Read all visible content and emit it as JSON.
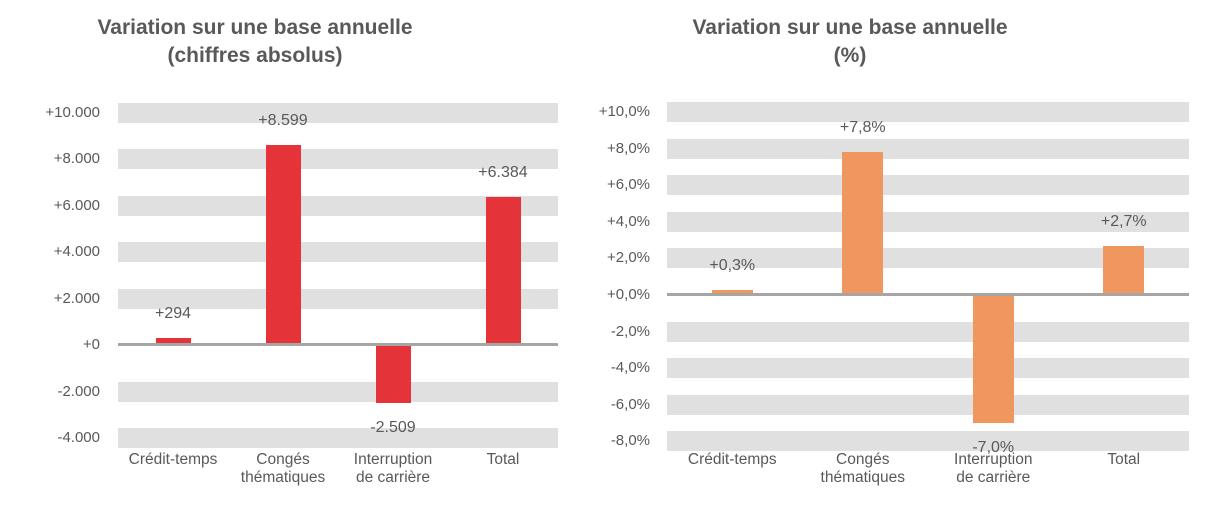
{
  "style": {
    "background": "#FFFFFF",
    "band_color": "#E0E0E0",
    "zero_line_color": "#A6A6A6",
    "text_color": "#595959",
    "red": "#E5333A",
    "orange": "#F0975F"
  },
  "chart_data": [
    {
      "type": "bar",
      "title": "Variation sur une base annuelle",
      "subtitle": "(chiffres absolus)",
      "categories": [
        "Crédit-temps",
        "Congés\nthématiques",
        "Interruption\nde carrière",
        "Total"
      ],
      "values": [
        294,
        8599,
        -2509,
        6384
      ],
      "bar_labels": [
        "+294",
        "+8.599",
        "-2.509",
        "+6.384"
      ],
      "bar_color": "#E5333A",
      "ylim": [
        -4000,
        10000
      ],
      "grid": "horizontal-bands",
      "legend": "none",
      "yticks": [
        {
          "value": 10000,
          "label": "+10.000"
        },
        {
          "value": 8000,
          "label": "+8.000"
        },
        {
          "value": 6000,
          "label": "+6.000"
        },
        {
          "value": 4000,
          "label": "+4.000"
        },
        {
          "value": 2000,
          "label": "+2.000"
        },
        {
          "value": 0,
          "label": "+0"
        },
        {
          "value": -2000,
          "label": "-2.000"
        },
        {
          "value": -4000,
          "label": "-4.000"
        }
      ]
    },
    {
      "type": "bar",
      "title": "Variation sur une base annuelle",
      "subtitle": "(%)",
      "categories": [
        "Crédit-temps",
        "Congés\nthématiques",
        "Interruption\nde carrière",
        "Total"
      ],
      "values": [
        0.3,
        7.8,
        -7.0,
        2.7
      ],
      "bar_labels": [
        "+0,3%",
        "+7,8%",
        "-7,0%",
        "+2,7%"
      ],
      "bar_color": "#F0975F",
      "ylim": [
        -8,
        10
      ],
      "grid": "horizontal-bands",
      "legend": "none",
      "yticks": [
        {
          "value": 10,
          "label": "+10,0%"
        },
        {
          "value": 8,
          "label": "+8,0%"
        },
        {
          "value": 6,
          "label": "+6,0%"
        },
        {
          "value": 4,
          "label": "+4,0%"
        },
        {
          "value": 2,
          "label": "+2,0%"
        },
        {
          "value": 0,
          "label": "+0,0%"
        },
        {
          "value": -2,
          "label": "-2,0%"
        },
        {
          "value": -4,
          "label": "-4,0%"
        },
        {
          "value": -6,
          "label": "-6,0%"
        },
        {
          "value": -8,
          "label": "-8,0%"
        }
      ]
    }
  ]
}
